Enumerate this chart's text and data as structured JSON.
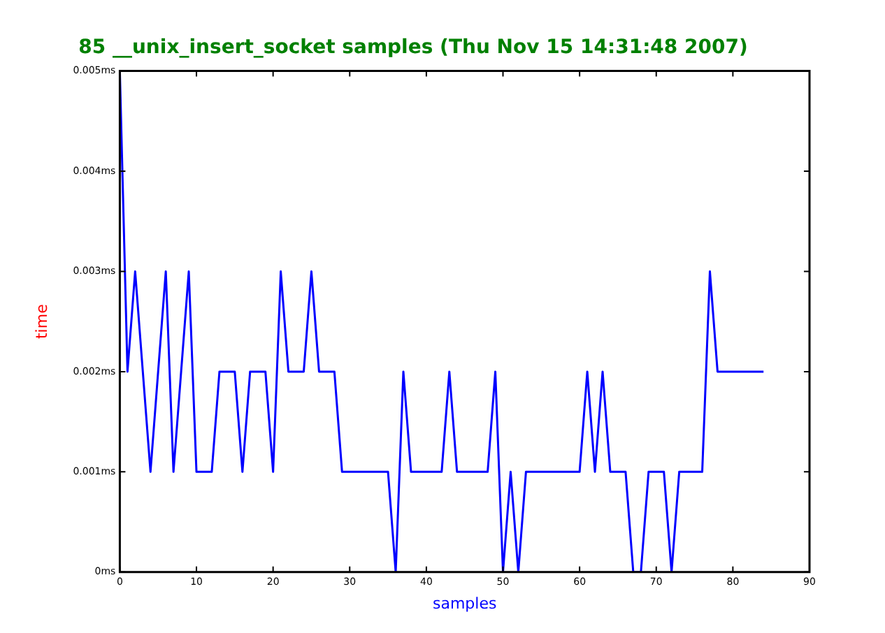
{
  "chart_data": {
    "type": "line",
    "title": "85 __unix_insert_socket samples (Thu Nov 15 14:31:48 2007)",
    "xlabel": "samples",
    "ylabel": "time",
    "x": [
      0,
      1,
      2,
      3,
      4,
      5,
      6,
      7,
      8,
      9,
      10,
      11,
      12,
      13,
      14,
      15,
      16,
      17,
      18,
      19,
      20,
      21,
      22,
      23,
      24,
      25,
      26,
      27,
      28,
      29,
      30,
      31,
      32,
      33,
      34,
      35,
      36,
      37,
      38,
      39,
      40,
      41,
      42,
      43,
      44,
      45,
      46,
      47,
      48,
      49,
      50,
      51,
      52,
      53,
      54,
      55,
      56,
      57,
      58,
      59,
      60,
      61,
      62,
      63,
      64,
      65,
      66,
      67,
      68,
      69,
      70,
      71,
      72,
      73,
      74,
      75,
      76,
      77,
      78,
      79,
      80,
      81,
      82,
      83,
      84
    ],
    "series": [
      {
        "color": "#0000ff",
        "values": [
          0.005,
          0.002,
          0.003,
          0.002,
          0.001,
          0.002,
          0.003,
          0.001,
          0.002,
          0.003,
          0.001,
          0.001,
          0.001,
          0.002,
          0.002,
          0.002,
          0.001,
          0.002,
          0.002,
          0.002,
          0.001,
          0.003,
          0.002,
          0.002,
          0.002,
          0.003,
          0.002,
          0.002,
          0.002,
          0.001,
          0.001,
          0.001,
          0.001,
          0.001,
          0.001,
          0.001,
          0,
          0.002,
          0.001,
          0.001,
          0.001,
          0.001,
          0.001,
          0.002,
          0.001,
          0.001,
          0.001,
          0.001,
          0.001,
          0.002,
          0,
          0.001,
          0,
          0.001,
          0.001,
          0.001,
          0.001,
          0.001,
          0.001,
          0.001,
          0.001,
          0.002,
          0.001,
          0.002,
          0.001,
          0.001,
          0.001,
          0,
          0,
          0.001,
          0.001,
          0.001,
          0,
          0.001,
          0.001,
          0.001,
          0.001,
          0.003,
          0.002,
          0.002,
          0.002,
          0.002,
          0.002,
          0.002,
          0.002
        ]
      }
    ],
    "xlim": [
      0,
      90
    ],
    "xticks": [
      0,
      10,
      20,
      30,
      40,
      50,
      60,
      70,
      80,
      90
    ],
    "ylim": [
      0,
      0.005
    ],
    "yticks": [
      {
        "value": 0,
        "label": "0ms"
      },
      {
        "value": 0.001,
        "label": "0.001ms"
      },
      {
        "value": 0.002,
        "label": "0.002ms"
      },
      {
        "value": 0.003,
        "label": "0.003ms"
      },
      {
        "value": 0.004,
        "label": "0.004ms"
      },
      {
        "value": 0.005,
        "label": "0.005ms"
      }
    ],
    "grid": false,
    "legend": false,
    "marker": "none",
    "line_style": "solid"
  }
}
